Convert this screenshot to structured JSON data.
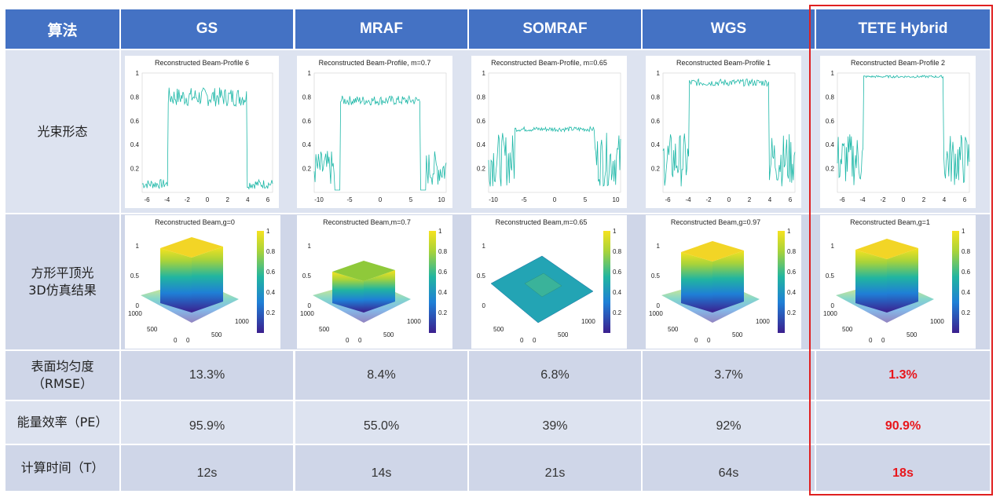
{
  "header": {
    "algo": "算法",
    "cols": [
      "GS",
      "MRAF",
      "SOMRAF",
      "WGS",
      "TETE Hybrid"
    ]
  },
  "rows": {
    "profile_label": "光束形态",
    "beam3d_label_1": "方形平顶光",
    "beam3d_label_2": "3D仿真结果",
    "rmse_label_1": "表面均匀度",
    "rmse_label_2": "（RMSE）",
    "pe_label": "能量效率（PE）",
    "t_label": "计算时间（T）"
  },
  "values": {
    "rmse": [
      "13.3%",
      "8.4%",
      "6.8%",
      "3.7%",
      "1.3%"
    ],
    "pe": [
      "95.9%",
      "55.0%",
      "39%",
      "92%",
      "90.9%"
    ],
    "t": [
      "12s",
      "14s",
      "21s",
      "64s",
      "18s"
    ]
  },
  "profiles": [
    {
      "title": "Reconstructed Beam-Profile 6",
      "xticks": [
        "-6",
        "-4",
        "-2",
        "0",
        "2",
        "4",
        "6"
      ],
      "yticks": [
        "0.2",
        "0.4",
        "0.6",
        "0.8",
        "1"
      ],
      "flat": 0.8,
      "noise": 0.08
    },
    {
      "title": "Reconstructed Beam-Profile, m=0.7",
      "xticks": [
        "-10",
        "-5",
        "0",
        "5",
        "10"
      ],
      "yticks": [
        "0.2",
        "0.4",
        "0.6",
        "0.8",
        "1"
      ],
      "flat": 0.77,
      "noise": 0.04
    },
    {
      "title": "Reconstructed Beam-Profile, m=0.65",
      "xticks": [
        "-10",
        "-5",
        "0",
        "5",
        "10"
      ],
      "yticks": [
        "0.2",
        "0.4",
        "0.6",
        "0.8",
        "1"
      ],
      "flat": 0.53,
      "noise": 0.02
    },
    {
      "title": "Reconstructed Beam-Profile 1",
      "xticks": [
        "-6",
        "-4",
        "-2",
        "0",
        "2",
        "4",
        "6"
      ],
      "yticks": [
        "0.2",
        "0.4",
        "0.6",
        "0.8",
        "1"
      ],
      "flat": 0.92,
      "noise": 0.03
    },
    {
      "title": "Reconstructed Beam-Profile 2",
      "xticks": [
        "-6",
        "-4",
        "-2",
        "0",
        "2",
        "4",
        "6"
      ],
      "yticks": [
        "0.2",
        "0.4",
        "0.6",
        "0.8",
        "1"
      ],
      "flat": 0.97,
      "noise": 0.01
    }
  ],
  "beams3d": [
    {
      "title": "Reconstructed Beam,g=0",
      "cbticks": [
        "0.2",
        "0.4",
        "0.6",
        "0.8",
        "1"
      ],
      "zticks": [
        "0",
        "0.5",
        "1"
      ],
      "xyticks": [
        "1000",
        "500",
        "0",
        "0",
        "500",
        "1000"
      ]
    },
    {
      "title": "Reconstructed Beam,m=0.7",
      "cbticks": [
        "0.2",
        "0.4",
        "0.6",
        "0.8",
        "1"
      ],
      "zticks": [
        "0",
        "0.5",
        "1"
      ],
      "xyticks": [
        "1000",
        "500",
        "0",
        "0",
        "500",
        "1000"
      ]
    },
    {
      "title": "Reconstructed Beam,m=0.65",
      "cbticks": [
        "0.2",
        "0.4",
        "0.6",
        "0.8",
        "1"
      ],
      "zticks": [
        "0",
        "0.5",
        "1"
      ],
      "xyticks": [
        "500",
        "0",
        "0",
        "500",
        "1000"
      ]
    },
    {
      "title": "Reconstructed Beam,g=0.97",
      "cbticks": [
        "0.2",
        "0.4",
        "0.6",
        "0.8",
        "1"
      ],
      "zticks": [
        "0",
        "0.5",
        "1"
      ],
      "xyticks": [
        "1000",
        "500",
        "0",
        "0",
        "500",
        "1000"
      ]
    },
    {
      "title": "Reconstructed Beam,g=1",
      "cbticks": [
        "0.2",
        "0.4",
        "0.6",
        "0.8",
        "1"
      ],
      "zticks": [
        "0",
        "0.5",
        "1"
      ],
      "xyticks": [
        "1000",
        "500",
        "0",
        "0",
        "500",
        "1000"
      ]
    }
  ],
  "colors": {
    "header_bg": "#4472c4",
    "row_a": "#dde3f0",
    "row_b": "#cfd6e8",
    "highlight_red": "#e8161b",
    "trace": "#1fb8a8"
  }
}
